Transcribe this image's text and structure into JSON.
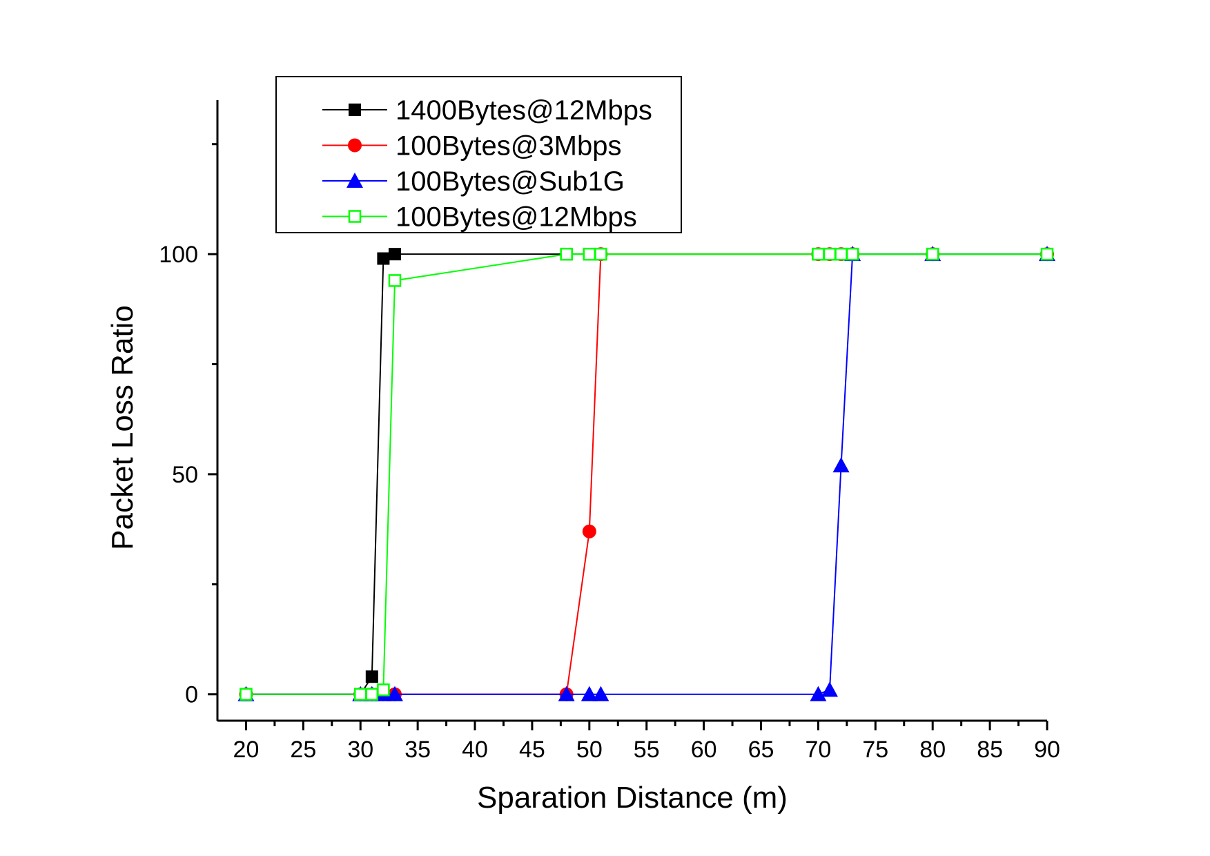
{
  "chart_data": {
    "type": "line",
    "xlabel": "Sparation Distance (m)",
    "ylabel": "Packet Loss Ratio",
    "xlim": [
      17.5,
      90
    ],
    "ylim": [
      -6,
      135
    ],
    "x_ticks": [
      20,
      25,
      30,
      35,
      40,
      45,
      50,
      55,
      60,
      65,
      70,
      75,
      80,
      85,
      90
    ],
    "y_ticks": [
      0,
      50,
      100
    ],
    "legend_position": "top-left",
    "grid": false,
    "series": [
      {
        "name": "1400Bytes@12Mbps",
        "color": "#000000",
        "marker": "square-filled",
        "x": [
          20,
          30,
          31,
          32,
          33,
          48,
          50,
          51,
          70,
          71,
          72,
          73,
          80,
          90
        ],
        "y": [
          0,
          0,
          4,
          99,
          100,
          100,
          100,
          100,
          100,
          100,
          100,
          100,
          100,
          100
        ]
      },
      {
        "name": "100Bytes@3Mbps",
        "color": "#ff0000",
        "marker": "circle-filled",
        "x": [
          20,
          30,
          31,
          32,
          33,
          48,
          50,
          51,
          70,
          71,
          72,
          73,
          80,
          90
        ],
        "y": [
          0,
          0,
          0,
          0,
          0,
          0,
          37,
          100,
          100,
          100,
          100,
          100,
          100,
          100
        ]
      },
      {
        "name": "100Bytes@Sub1G",
        "color": "#0000ff",
        "marker": "triangle-filled",
        "x": [
          20,
          30,
          31,
          32,
          33,
          48,
          50,
          51,
          70,
          71,
          72,
          73,
          80,
          90
        ],
        "y": [
          0,
          0,
          0,
          0,
          0,
          0,
          0,
          0,
          0,
          1,
          52,
          100,
          100,
          100
        ]
      },
      {
        "name": "100Bytes@12Mbps",
        "color": "#00ff00",
        "marker": "square-open",
        "x": [
          20,
          30,
          31,
          32,
          33,
          48,
          50,
          51,
          70,
          71,
          72,
          73,
          80,
          90
        ],
        "y": [
          0,
          0,
          0,
          1,
          94,
          100,
          100,
          100,
          100,
          100,
          100,
          100,
          100,
          100
        ]
      }
    ]
  }
}
